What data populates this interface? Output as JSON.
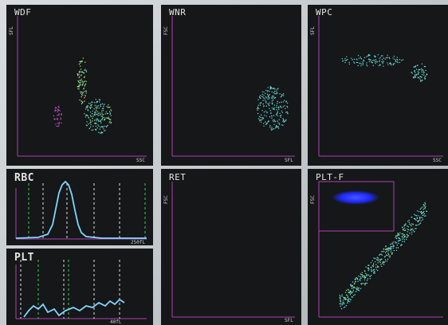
{
  "panels": {
    "wdf": {
      "title": "WDF",
      "xlabel": "SSC",
      "ylabel": "SFL"
    },
    "wnr": {
      "title": "WNR",
      "xlabel": "SFL",
      "ylabel": "FSC"
    },
    "wpc": {
      "title": "WPC",
      "xlabel": "SSC",
      "ylabel": "SFL"
    },
    "rbc": {
      "title": "RBC",
      "xlabel": "250fL"
    },
    "plt": {
      "title": "PLT",
      "xlabel": "40fL"
    },
    "ret": {
      "title": "RET",
      "xlabel": "SFL",
      "ylabel": "FSC"
    },
    "pltf": {
      "title": "PLT-F",
      "xlabel": "",
      "ylabel": "FSC"
    }
  },
  "colors": {
    "frame": "#b13fb4",
    "cyan": "#6fe0d8",
    "blue": "#1f2bff",
    "green": "#3fd24a",
    "white_dash": "#e0e0e0",
    "histogram": "#7fd7ff"
  }
}
